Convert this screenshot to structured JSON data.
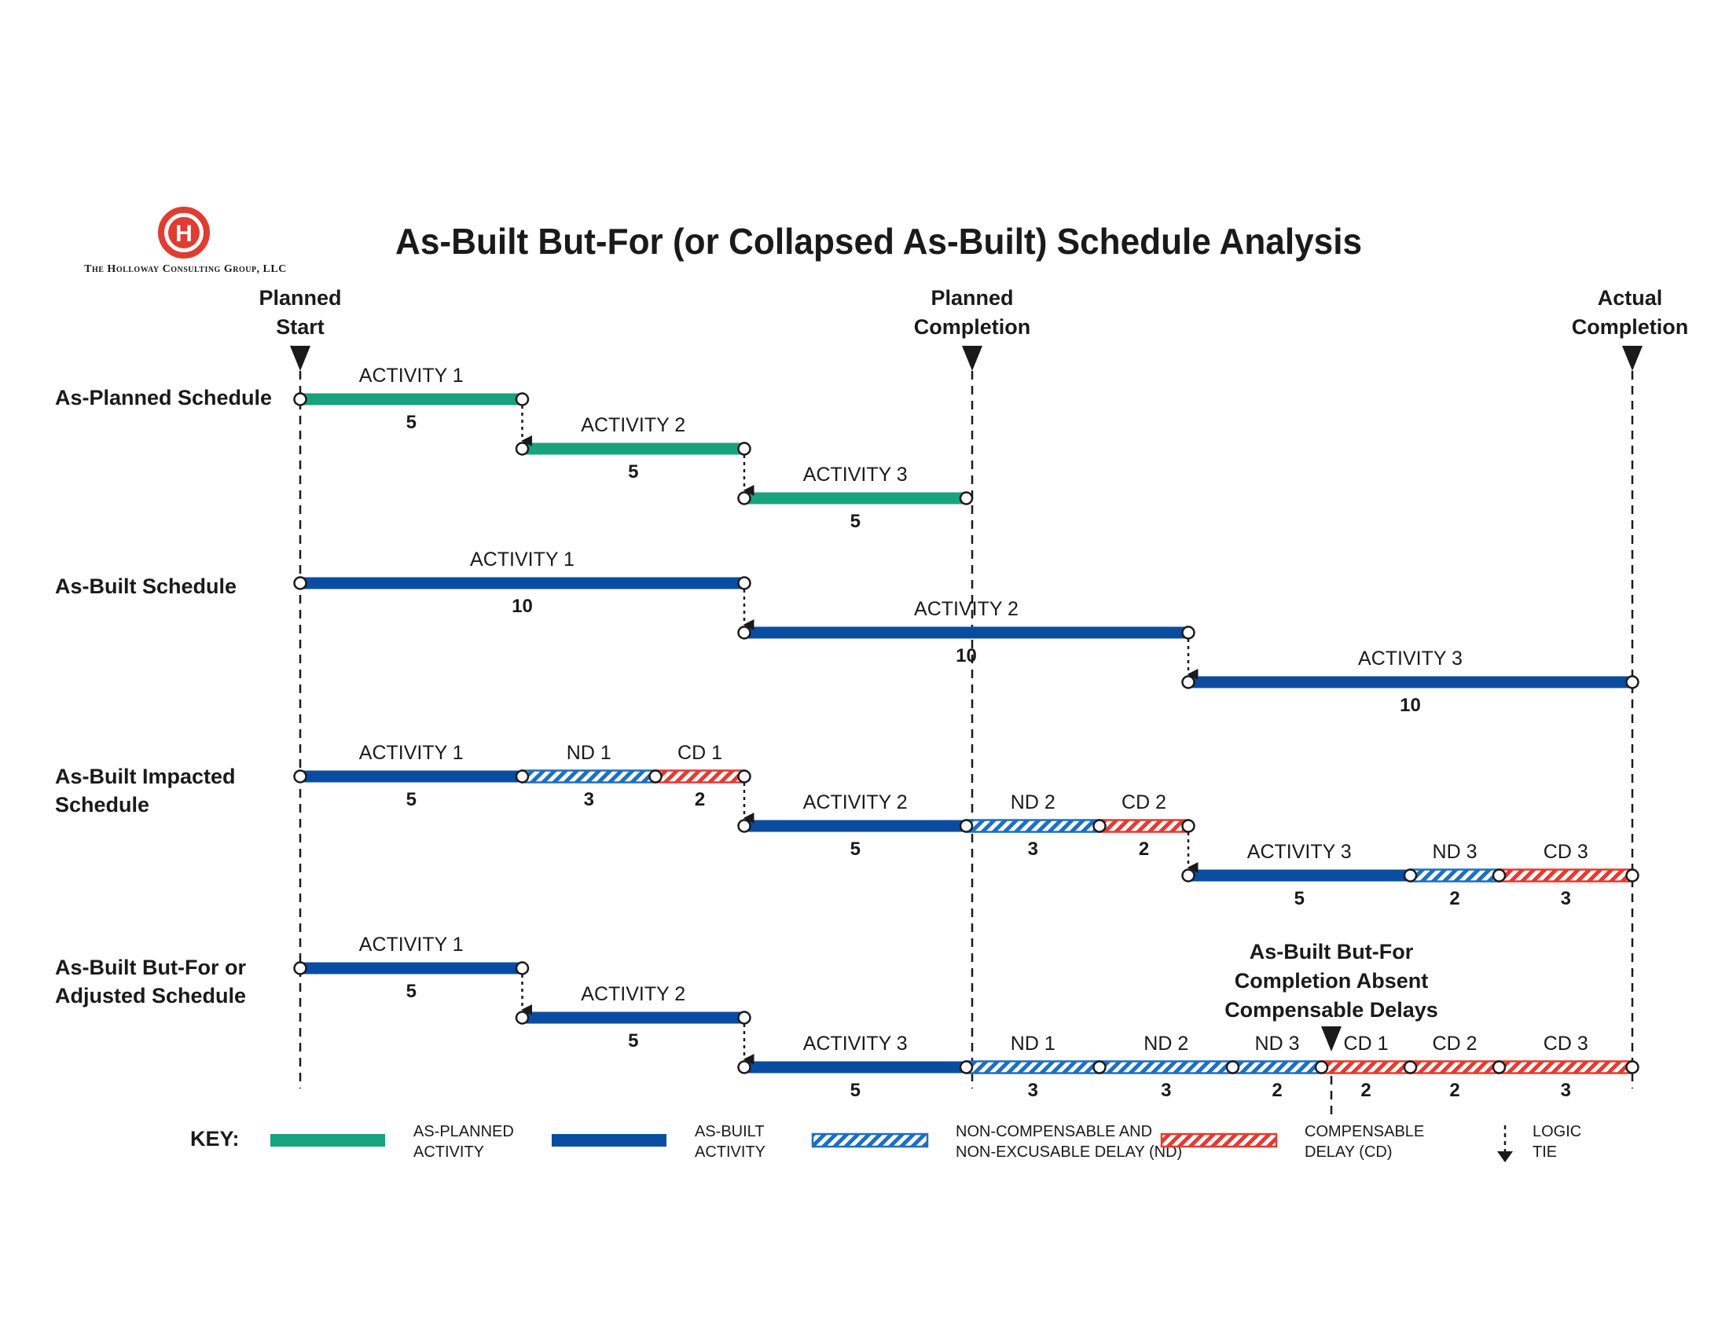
{
  "company": {
    "name": "The Holloway Consulting Group, LLC",
    "logo_letter": "H",
    "logo_color": "#e03c31"
  },
  "title": "As-Built But-For (or Collapsed As-Built) Schedule Analysis",
  "markers": {
    "planned_start": [
      "Planned",
      "Start"
    ],
    "planned_completion": [
      "Planned",
      "Completion"
    ],
    "actual_completion": [
      "Actual",
      "Completion"
    ]
  },
  "rows": {
    "as_planned": [
      "As-Planned Schedule"
    ],
    "as_built": [
      "As-Built Schedule"
    ],
    "impacted": [
      "As-Built Impacted",
      "Schedule"
    ],
    "but_for": [
      "As-Built But-For or",
      "Adjusted Schedule"
    ]
  },
  "but_for_completion": [
    "As-Built But-For",
    "Completion Absent",
    "Compensable Delays"
  ],
  "colors": {
    "planned": "#17a37e",
    "built": "#0a4da0",
    "nd": "#1f6fc0",
    "cd": "#e33b33",
    "ink": "#1a1a1a"
  },
  "schedules": [
    {
      "id": "as_planned",
      "bars": [
        {
          "kind": "planned",
          "label": "ACTIVITY 1",
          "duration": "5",
          "start": 0,
          "end": 5,
          "lane": 0
        },
        {
          "kind": "planned",
          "label": "ACTIVITY 2",
          "duration": "5",
          "start": 5,
          "end": 10,
          "lane": 1
        },
        {
          "kind": "planned",
          "label": "ACTIVITY 3",
          "duration": "5",
          "start": 10,
          "end": 15,
          "lane": 2
        }
      ]
    },
    {
      "id": "as_built",
      "bars": [
        {
          "kind": "built",
          "label": "ACTIVITY 1",
          "duration": "10",
          "start": 0,
          "end": 10,
          "lane": 0
        },
        {
          "kind": "built",
          "label": "ACTIVITY 2",
          "duration": "10",
          "start": 10,
          "end": 20,
          "lane": 1
        },
        {
          "kind": "built",
          "label": "ACTIVITY 3",
          "duration": "10",
          "start": 20,
          "end": 30,
          "lane": 2
        }
      ]
    },
    {
      "id": "impacted",
      "bars": [
        {
          "kind": "built",
          "label": "ACTIVITY 1",
          "duration": "5",
          "start": 0,
          "end": 5,
          "lane": 0
        },
        {
          "kind": "nd",
          "label": "ND 1",
          "duration": "3",
          "start": 5,
          "end": 8,
          "lane": 0
        },
        {
          "kind": "cd",
          "label": "CD 1",
          "duration": "2",
          "start": 8,
          "end": 10,
          "lane": 0
        },
        {
          "kind": "built",
          "label": "ACTIVITY 2",
          "duration": "5",
          "start": 10,
          "end": 15,
          "lane": 1
        },
        {
          "kind": "nd",
          "label": "ND 2",
          "duration": "3",
          "start": 15,
          "end": 18,
          "lane": 1
        },
        {
          "kind": "cd",
          "label": "CD 2",
          "duration": "2",
          "start": 18,
          "end": 20,
          "lane": 1
        },
        {
          "kind": "built",
          "label": "ACTIVITY 3",
          "duration": "5",
          "start": 20,
          "end": 25,
          "lane": 2
        },
        {
          "kind": "nd",
          "label": "ND 3",
          "duration": "2",
          "start": 25,
          "end": 27,
          "lane": 2
        },
        {
          "kind": "cd",
          "label": "CD 3",
          "duration": "3",
          "start": 27,
          "end": 30,
          "lane": 2
        }
      ]
    },
    {
      "id": "but_for",
      "bars": [
        {
          "kind": "built",
          "label": "ACTIVITY 1",
          "duration": "5",
          "start": 0,
          "end": 5,
          "lane": 0
        },
        {
          "kind": "built",
          "label": "ACTIVITY 2",
          "duration": "5",
          "start": 5,
          "end": 10,
          "lane": 1
        },
        {
          "kind": "built",
          "label": "ACTIVITY 3",
          "duration": "5",
          "start": 10,
          "end": 15,
          "lane": 2
        },
        {
          "kind": "nd",
          "label": "ND 1",
          "duration": "3",
          "start": 15,
          "end": 18,
          "lane": 2
        },
        {
          "kind": "nd",
          "label": "ND 2",
          "duration": "3",
          "start": 18,
          "end": 21,
          "lane": 2
        },
        {
          "kind": "nd",
          "label": "ND 3",
          "duration": "2",
          "start": 21,
          "end": 23,
          "lane": 2
        },
        {
          "kind": "cd",
          "label": "CD 1",
          "duration": "2",
          "start": 23,
          "end": 25,
          "lane": 2
        },
        {
          "kind": "cd",
          "label": "CD 2",
          "duration": "2",
          "start": 25,
          "end": 27,
          "lane": 2
        },
        {
          "kind": "cd",
          "label": "CD 3",
          "duration": "3",
          "start": 27,
          "end": 30,
          "lane": 2
        }
      ]
    }
  ],
  "key": {
    "title": "KEY:",
    "items": {
      "planned": [
        "AS-PLANNED",
        "ACTIVITY"
      ],
      "built": [
        "AS-BUILT",
        "ACTIVITY"
      ],
      "nd": [
        "NON-COMPENSABLE AND",
        "NON-EXCUSABLE DELAY (ND)"
      ],
      "cd": [
        "COMPENSABLE",
        "DELAY (CD)"
      ],
      "logic": [
        "LOGIC",
        "TIE"
      ]
    }
  }
}
